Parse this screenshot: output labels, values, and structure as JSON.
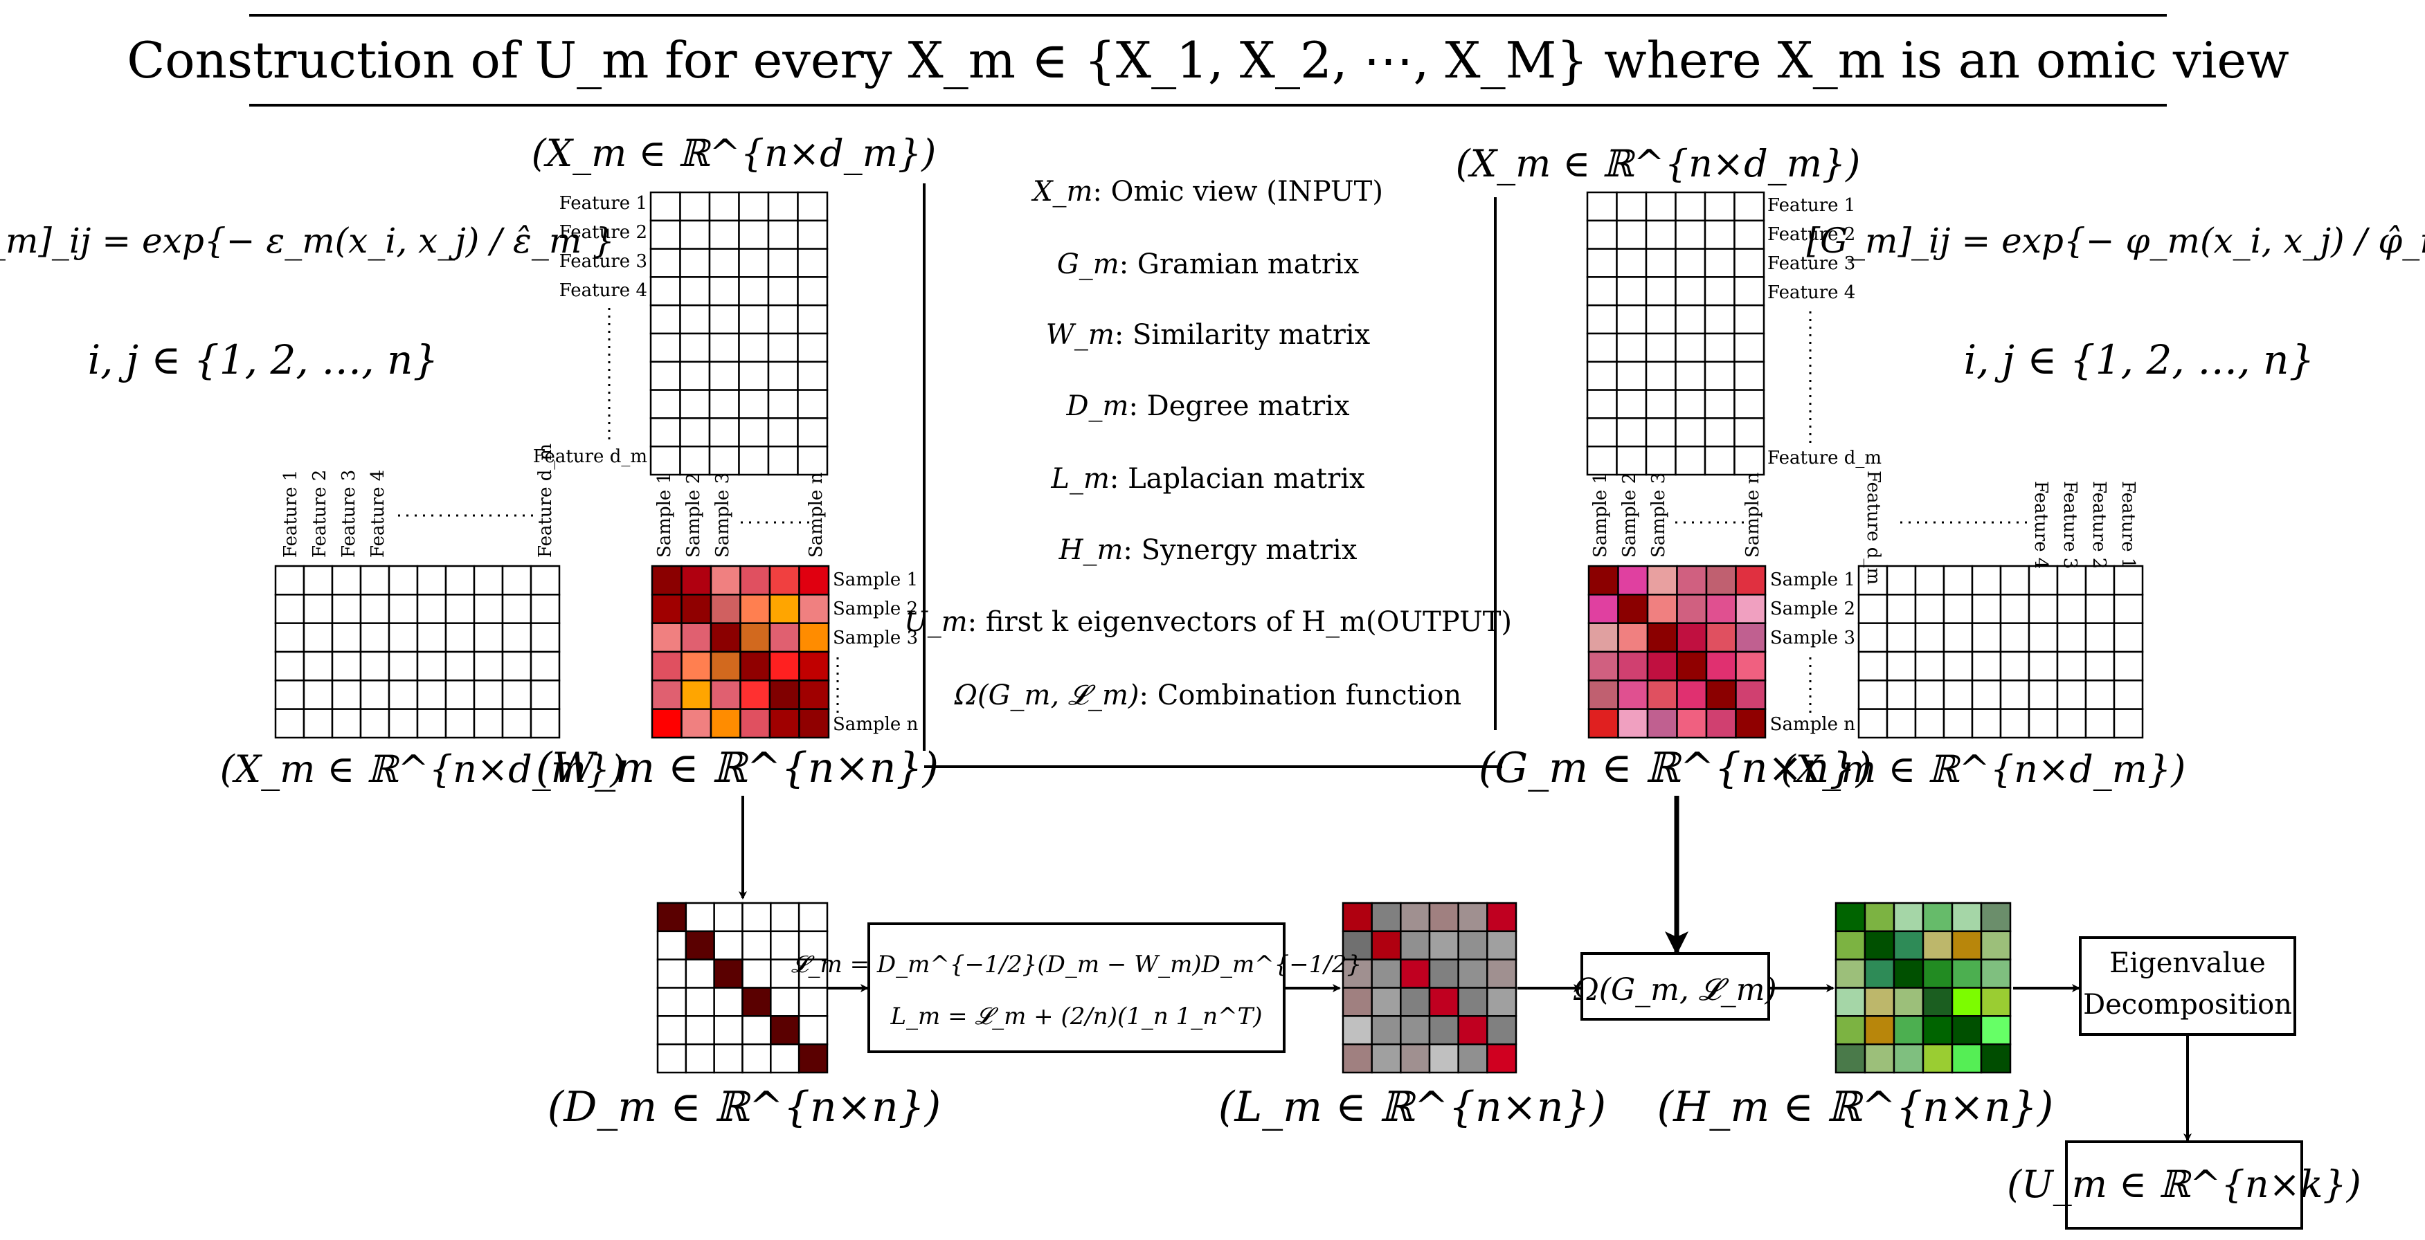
{
  "title": "Construction of U_m for every X_m ∈ {X_1, X_2, ⋯, X_M} where X_m is an omic view",
  "formulas": {
    "w_def": "[W_m]_ij = exp{− ε_m(x_i, x_j) / ε̂_m }",
    "w_index": "i, j ∈ {1, 2, …, n}",
    "g_def": "[G_m]_ij = exp{− φ_m(x_i, x_j) / φ̂_m }",
    "g_index": "i, j ∈ {1, 2, …, n}",
    "laplacian_line1": "𝓛_m = D_m^{−1/2}(D_m − W_m)D_m^{−1/2}",
    "laplacian_line2": "L_m = 𝓛_m + (2/n)(1_n 1_n^T)"
  },
  "legend": [
    {
      "symbol": "X_m",
      "text": ": Omic view (INPUT)"
    },
    {
      "symbol": "G_m",
      "text": ": Gramian matrix"
    },
    {
      "symbol": "W_m",
      "text": ": Similarity matrix"
    },
    {
      "symbol": "D_m",
      "text": ": Degree matrix"
    },
    {
      "symbol": "L_m",
      "text": ": Laplacian matrix"
    },
    {
      "symbol": "H_m",
      "text": ": Synergy matrix"
    },
    {
      "symbol": "U_m",
      "text": ": first k eigenvectors of H_m(OUTPUT)"
    },
    {
      "symbol": "Ω(G_m, 𝓛_m)",
      "text": ": Combination function"
    }
  ],
  "matrix_labels": {
    "x_top_left": "(X_m ∈ ℝ^{n×d_m})",
    "x_bottom_left": "(X_m ∈ ℝ^{n×d_m})",
    "w": "(W_m ∈ ℝ^{n×n})",
    "x_top_right": "(X_m ∈ ℝ^{n×d_m})",
    "x_bottom_right": "(X_m ∈ ℝ^{n×d_m})",
    "g": "(G_m ∈ ℝ^{n×n})",
    "d": "(D_m ∈ ℝ^{n×n})",
    "l": "(L_m ∈ ℝ^{n×n})",
    "h": "(H_m ∈ ℝ^{n×n})",
    "u": "(U_m ∈ ℝ^{n×k})"
  },
  "features": [
    "Feature 1",
    "Feature 2",
    "Feature 3",
    "Feature 4",
    "Feature d_m"
  ],
  "samples": [
    "Sample 1",
    "Sample 2",
    "Sample 3",
    "Sample n"
  ],
  "omega_box": "Ω(G_m, 𝓛_m)",
  "eigen_box": [
    "Eigenvalue",
    "Decomposition"
  ],
  "colors": {
    "w_matrix": [
      [
        "#8b0000",
        "#b00010",
        "#f08080",
        "#e05060",
        "#f04040",
        "#e00010"
      ],
      [
        "#a00000",
        "#900000",
        "#d06060",
        "#ff7f50",
        "#ffa500",
        "#f08080"
      ],
      [
        "#f08080",
        "#e06070",
        "#8b0000",
        "#d2691e",
        "#e06070",
        "#ff8c00"
      ],
      [
        "#e05060",
        "#ff7f50",
        "#d2691e",
        "#900000",
        "#ff2020",
        "#c00000"
      ],
      [
        "#e06070",
        "#ffa500",
        "#e06070",
        "#ff3030",
        "#800000",
        "#a00000"
      ],
      [
        "#ff0000",
        "#f08080",
        "#ff8c00",
        "#e05060",
        "#a00000",
        "#900000"
      ]
    ],
    "g_matrix": [
      [
        "#8b0000",
        "#e040a0",
        "#e8a0a0",
        "#d06080",
        "#c06070",
        "#e03040"
      ],
      [
        "#e040a0",
        "#8b0000",
        "#f08080",
        "#d06080",
        "#e05090",
        "#f0a0c0"
      ],
      [
        "#e0a0a0",
        "#f08080",
        "#8b0000",
        "#c01040",
        "#e05060",
        "#c06090"
      ],
      [
        "#d06080",
        "#d04070",
        "#c01040",
        "#900000",
        "#e03070",
        "#f06080"
      ],
      [
        "#c06070",
        "#e05090",
        "#e05060",
        "#e03070",
        "#8b0000",
        "#d04070"
      ],
      [
        "#e02020",
        "#f0a0c0",
        "#c06090",
        "#f06080",
        "#d04070",
        "#900000"
      ]
    ],
    "l_matrix": [
      [
        "#b00010",
        "#808080",
        "#a09090",
        "#a08080",
        "#a09090",
        "#c00020"
      ],
      [
        "#707070",
        "#b00010",
        "#909090",
        "#a0a0a0",
        "#909090",
        "#a0a0a0"
      ],
      [
        "#a09090",
        "#909090",
        "#c00020",
        "#808080",
        "#909090",
        "#a09090"
      ],
      [
        "#a08080",
        "#a0a0a0",
        "#808080",
        "#c00020",
        "#808080",
        "#a0a0a0"
      ],
      [
        "#c0c0c0",
        "#909090",
        "#909090",
        "#808080",
        "#c00020",
        "#808080"
      ],
      [
        "#a08080",
        "#a0a0a0",
        "#a09090",
        "#c0c0c0",
        "#909090",
        "#d00020"
      ]
    ],
    "h_matrix": [
      [
        "#006400",
        "#7cb342",
        "#a5d6a7",
        "#66bb6a",
        "#a5d6a7",
        "#6b8e6b"
      ],
      [
        "#7cb342",
        "#005000",
        "#2e8b57",
        "#bdb76b",
        "#b8860b",
        "#9cbf7a"
      ],
      [
        "#9cbf7a",
        "#2e8b57",
        "#005000",
        "#228b22",
        "#4caf50",
        "#7fbf7f"
      ],
      [
        "#a5d6a7",
        "#bdb76b",
        "#9cbf7a",
        "#1b5e20",
        "#7cfc00",
        "#9acd32"
      ],
      [
        "#7cb342",
        "#b8860b",
        "#4caf50",
        "#006400",
        "#005000",
        "#66ff66"
      ],
      [
        "#4a7a4a",
        "#9cbf7a",
        "#7fbf7f",
        "#9acd32",
        "#55ee55",
        "#004d00"
      ]
    ]
  }
}
